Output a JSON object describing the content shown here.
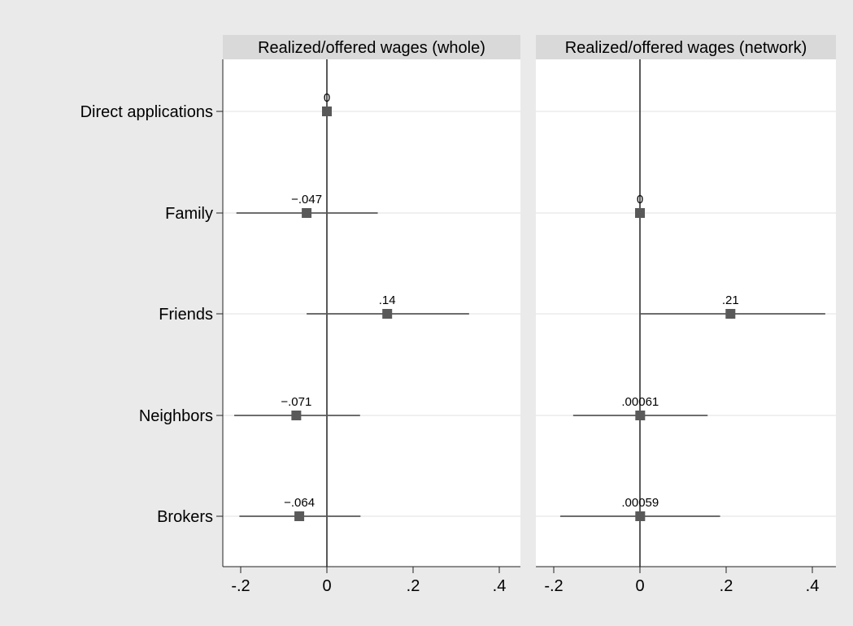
{
  "colors": {
    "outer_background": "#eaeaea",
    "plot_background": "#ffffff",
    "panel_header": "#d9d9d9",
    "marker": "#595959",
    "ci_line": "#595959",
    "zero_line": "#222222",
    "grid": "#e6e6e6",
    "text": "#000000"
  },
  "chart_data": {
    "type": "scatter",
    "subtype": "coefficient plot with confidence intervals",
    "categories": [
      "Direct applications",
      "Family",
      "Friends",
      "Neighbors",
      "Brokers"
    ],
    "xlim": [
      -0.25,
      0.44
    ],
    "xticks": [
      -0.2,
      0,
      0.2,
      0.4
    ],
    "xtick_labels": [
      "-.2",
      "0",
      ".2",
      ".4"
    ],
    "grid": "horizontal",
    "reference_line": 0,
    "marker": "square",
    "panels": [
      {
        "title": "Realized/offered wages (whole)",
        "points": [
          {
            "category": "Direct applications",
            "value": 0,
            "ci": null,
            "label": "0"
          },
          {
            "category": "Family",
            "value": -0.047,
            "ci": [
              -0.21,
              0.118
            ],
            "label": "−.047"
          },
          {
            "category": "Friends",
            "value": 0.14,
            "ci": [
              -0.047,
              0.33
            ],
            "label": ".14"
          },
          {
            "category": "Neighbors",
            "value": -0.071,
            "ci": [
              -0.215,
              0.077
            ],
            "label": "−.071"
          },
          {
            "category": "Brokers",
            "value": -0.064,
            "ci": [
              -0.203,
              0.078
            ],
            "label": "−.064"
          }
        ]
      },
      {
        "title": "Realized/offered wages (network)",
        "points": [
          {
            "category": "Direct applications",
            "value": null,
            "ci": null,
            "label": ""
          },
          {
            "category": "Family",
            "value": 0,
            "ci": null,
            "label": "0"
          },
          {
            "category": "Friends",
            "value": 0.21,
            "ci": [
              0,
              0.43
            ],
            "label": ".21"
          },
          {
            "category": "Neighbors",
            "value": 0.00061,
            "ci": [
              -0.155,
              0.157
            ],
            "label": ".00061"
          },
          {
            "category": "Brokers",
            "value": 0.00059,
            "ci": [
              -0.185,
              0.186
            ],
            "label": ".00059"
          }
        ]
      }
    ]
  }
}
